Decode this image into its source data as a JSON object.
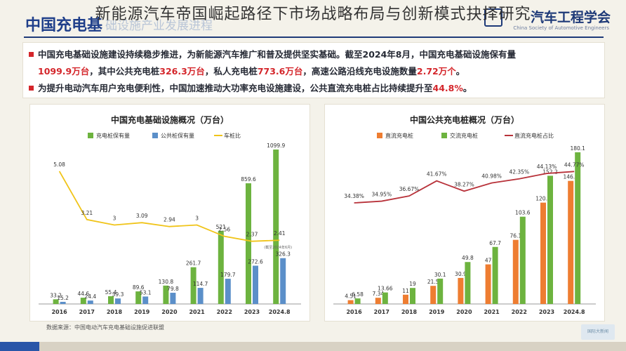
{
  "overlay_title": "新能源汽车帝国崛起路径下市场战略布局与创新模式抉择研究",
  "header": {
    "left_title": "中国充电基",
    "left_title_faded": "础设施产业发展进程",
    "org_name": "汽车工程学会",
    "org_name_en": "China Society of Automotive Engineers"
  },
  "summary": {
    "line1": "中国充电基础设施建设持续稳步推进，为新能源汽车推广和普及提供坚实基础。截至2024年8月，中国充电基础设施保有量",
    "line2_a": "1099.9万台",
    "line2_b": "，其中公共充电桩",
    "line2_c": "326.3万台",
    "line2_d": "，私人充电桩",
    "line2_e": "773.6万台",
    "line2_f": "，高速公路沿线充电设施数量",
    "line2_g": "2.72万个",
    "line2_h": "。",
    "line3_a": "为提升电动汽车用户充电便利性，中国加速推动大功率充电设施建设，公共直流充电桩占比持续提升至",
    "line3_b": "44.8%",
    "line3_c": "。"
  },
  "source_note": "数据来源：中国电动汽车充电基础设施促进联盟",
  "watermark": "国际大新闻",
  "colors": {
    "green": "#6db33f",
    "blue": "#5b8fc9",
    "yellow": "#f0c419",
    "orange": "#ee7d31",
    "dark_red": "#b8323a",
    "red_text": "#d4262b",
    "navy": "#1e3a78"
  },
  "chart_data": [
    {
      "type": "bar",
      "title": "中国充电基础设施概况（万台）",
      "categories": [
        "2016",
        "2017",
        "2018",
        "2019",
        "2020",
        "2021",
        "2022",
        "2023",
        "2024.8"
      ],
      "series": [
        {
          "name": "充电桩保有量",
          "kind": "bar",
          "color": "#6db33f",
          "values": [
            33.2,
            44.6,
            55.4,
            89.6,
            130.8,
            261.7,
            521,
            859.6,
            1099.9
          ]
        },
        {
          "name": "公共桩保有量",
          "kind": "bar",
          "color": "#5b8fc9",
          "values": [
            15.2,
            24.4,
            39.3,
            53.1,
            79.8,
            114.7,
            179.7,
            272.6,
            326.3
          ]
        },
        {
          "name": "车桩比",
          "kind": "line",
          "color": "#f0c419",
          "values": [
            5.08,
            3.21,
            3,
            3.09,
            2.94,
            3,
            2.56,
            2.37,
            2.41
          ]
        }
      ],
      "annotation": "(截至2024年6月)",
      "xlabel": "",
      "ylabel": ""
    },
    {
      "type": "bar",
      "title": "中国公共充电桩概况（万台）",
      "categories": [
        "2016",
        "2017",
        "2018",
        "2019",
        "2020",
        "2021",
        "2022",
        "2023",
        "2024.8"
      ],
      "series": [
        {
          "name": "直流充电桩",
          "kind": "bar",
          "color": "#ee7d31",
          "values": [
            4.51,
            7.34,
            11,
            21.5,
            30.9,
            47,
            76.1,
            120.3,
            146.1
          ]
        },
        {
          "name": "交流充电桩",
          "kind": "bar",
          "color": "#6db33f",
          "values": [
            6.58,
            13.66,
            19,
            30.1,
            49.8,
            67.7,
            103.6,
            152.2,
            180.1
          ]
        },
        {
          "name": "直流充电桩占比",
          "kind": "line",
          "color": "#b8323a",
          "values": [
            34.38,
            34.95,
            36.67,
            41.67,
            38.27,
            40.98,
            42.35,
            44.13,
            44.77
          ],
          "labels": [
            "34.38%",
            "34.95%",
            "36.67%",
            "41.67%",
            "38.27%",
            "40.98%",
            "42.35%",
            "44.13%",
            "44.77%"
          ]
        }
      ],
      "xlabel": "",
      "ylabel": ""
    }
  ]
}
